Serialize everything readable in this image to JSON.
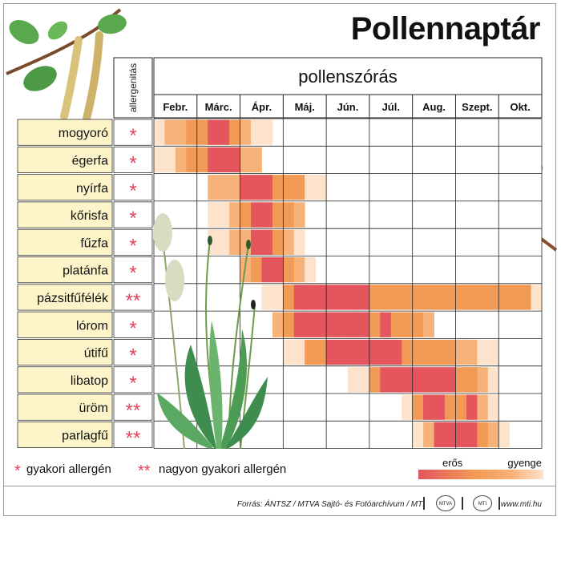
{
  "title": "Pollennaptár",
  "header": {
    "allergen_col_label": "allergenitás",
    "period_label": "pollenszórás"
  },
  "legend": {
    "one_star": "*",
    "one_star_text": "gyakori allergén",
    "two_star": "**",
    "two_star_text": "nagyon gyakori allergén",
    "scale_strong": "erős",
    "scale_weak": "gyenge"
  },
  "footer": {
    "source": "Forrás: ÁNTSZ / MTVA Sajtó- és Fotóarchívum / MTI",
    "logo1": "MTVA",
    "logo2": "MTI",
    "site": "www.mti.hu"
  },
  "colors": {
    "level1": "#fde3cc",
    "level2": "#f7b27a",
    "level3": "#f19a55",
    "level4": "#e4555e",
    "label_bg": "#fdf5c9",
    "star": "#e0445a"
  },
  "chart_data": {
    "type": "heatmap",
    "title": "Pollennaptár",
    "xlabel": "pollenszórás",
    "categories": [
      "Febr.",
      "Márc.",
      "Ápr.",
      "Máj.",
      "Jún.",
      "Júl.",
      "Aug.",
      "Szept.",
      "Okt."
    ],
    "segments_per_month": 4,
    "intensity_scale": "0 = none, 1 = gyenge … 4 = erős",
    "rows": [
      {
        "plant": "mogyoró",
        "allergenicity": "*",
        "levels": [
          1,
          2,
          2,
          3,
          3,
          4,
          4,
          3,
          2,
          1,
          1,
          0,
          0,
          0,
          0,
          0,
          0,
          0,
          0,
          0,
          0,
          0,
          0,
          0,
          0,
          0,
          0,
          0,
          0,
          0,
          0,
          0,
          0,
          0,
          0,
          0
        ]
      },
      {
        "plant": "égerfa",
        "allergenicity": "*",
        "levels": [
          1,
          1,
          2,
          3,
          3,
          4,
          4,
          4,
          2,
          2,
          0,
          0,
          0,
          0,
          0,
          0,
          0,
          0,
          0,
          0,
          0,
          0,
          0,
          0,
          0,
          0,
          0,
          0,
          0,
          0,
          0,
          0,
          0,
          0,
          0,
          0
        ]
      },
      {
        "plant": "nyírfa",
        "allergenicity": "*",
        "levels": [
          0,
          0,
          0,
          0,
          0,
          2,
          2,
          2,
          4,
          4,
          4,
          3,
          3,
          3,
          1,
          1,
          0,
          0,
          0,
          0,
          0,
          0,
          0,
          0,
          0,
          0,
          0,
          0,
          0,
          0,
          0,
          0,
          0,
          0,
          0,
          0
        ]
      },
      {
        "plant": "kőrisfa",
        "allergenicity": "*",
        "levels": [
          0,
          0,
          0,
          0,
          0,
          1,
          1,
          2,
          3,
          4,
          4,
          3,
          3,
          2,
          0,
          0,
          0,
          0,
          0,
          0,
          0,
          0,
          0,
          0,
          0,
          0,
          0,
          0,
          0,
          0,
          0,
          0,
          0,
          0,
          0,
          0
        ]
      },
      {
        "plant": "fűzfa",
        "allergenicity": "*",
        "levels": [
          0,
          0,
          0,
          0,
          0,
          1,
          1,
          2,
          2,
          4,
          4,
          3,
          2,
          1,
          0,
          0,
          0,
          0,
          0,
          0,
          0,
          0,
          0,
          0,
          0,
          0,
          0,
          0,
          0,
          0,
          0,
          0,
          0,
          0,
          0,
          0
        ]
      },
      {
        "plant": "platánfa",
        "allergenicity": "*",
        "levels": [
          0,
          0,
          0,
          0,
          0,
          0,
          0,
          0,
          2,
          3,
          4,
          4,
          3,
          2,
          1,
          0,
          0,
          0,
          0,
          0,
          0,
          0,
          0,
          0,
          0,
          0,
          0,
          0,
          0,
          0,
          0,
          0,
          0,
          0,
          0,
          0
        ]
      },
      {
        "plant": "pázsitfűfélék",
        "allergenicity": "**",
        "levels": [
          0,
          0,
          0,
          0,
          0,
          0,
          0,
          0,
          0,
          0,
          1,
          1,
          3,
          4,
          4,
          4,
          4,
          4,
          4,
          4,
          3,
          3,
          3,
          3,
          3,
          3,
          3,
          3,
          3,
          3,
          3,
          3,
          3,
          3,
          3,
          1
        ]
      },
      {
        "plant": "lórom",
        "allergenicity": "*",
        "levels": [
          0,
          0,
          0,
          0,
          0,
          0,
          0,
          0,
          0,
          0,
          0,
          2,
          3,
          4,
          4,
          4,
          4,
          4,
          4,
          4,
          3,
          4,
          3,
          3,
          3,
          2,
          0,
          0,
          0,
          0,
          0,
          0,
          0,
          0,
          0,
          0
        ]
      },
      {
        "plant": "útifű",
        "allergenicity": "*",
        "levels": [
          0,
          0,
          0,
          0,
          0,
          0,
          0,
          0,
          0,
          0,
          0,
          0,
          1,
          1,
          3,
          3,
          4,
          4,
          4,
          4,
          4,
          4,
          4,
          3,
          3,
          3,
          3,
          3,
          2,
          2,
          1,
          1,
          0,
          0,
          0,
          0
        ]
      },
      {
        "plant": "libatop",
        "allergenicity": "*",
        "levels": [
          0,
          0,
          0,
          0,
          0,
          0,
          0,
          0,
          0,
          0,
          0,
          0,
          0,
          0,
          0,
          0,
          0,
          0,
          1,
          1,
          3,
          4,
          4,
          4,
          4,
          4,
          4,
          4,
          3,
          3,
          2,
          1,
          0,
          0,
          0,
          0
        ]
      },
      {
        "plant": "üröm",
        "allergenicity": "**",
        "levels": [
          0,
          0,
          0,
          0,
          0,
          0,
          0,
          0,
          0,
          0,
          0,
          0,
          0,
          0,
          0,
          0,
          0,
          0,
          0,
          0,
          0,
          0,
          0,
          1,
          3,
          4,
          4,
          3,
          3,
          4,
          2,
          1,
          0,
          0,
          0,
          0
        ]
      },
      {
        "plant": "parlagfű",
        "allergenicity": "**",
        "levels": [
          0,
          0,
          0,
          0,
          0,
          0,
          0,
          0,
          0,
          0,
          0,
          0,
          0,
          0,
          0,
          0,
          0,
          0,
          0,
          0,
          0,
          0,
          0,
          0,
          1,
          2,
          4,
          4,
          4,
          4,
          3,
          2,
          1,
          0,
          0,
          0
        ]
      }
    ]
  }
}
